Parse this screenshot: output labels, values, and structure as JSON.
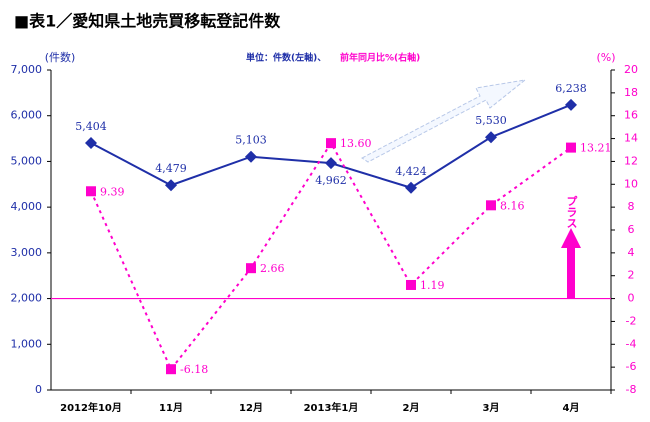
{
  "chart_data": {
    "type": "line",
    "title": "■表1／愛知県土地売買移転登記件数",
    "unit_note_left": "単位：件数(左軸)、",
    "unit_note_right": "前年同月比%(右軸)",
    "y_label": "(件数)",
    "y2_label": "(%)",
    "annotation": "プラス",
    "categories": [
      "2012年10月",
      "11月",
      "12月",
      "2013年1月",
      "2月",
      "3月",
      "4月"
    ],
    "series": [
      {
        "name": "件数",
        "color": "#1f2fa8",
        "values": [
          5404,
          4479,
          5103,
          4962,
          4424,
          5530,
          6238
        ],
        "value_labels": [
          "5,404",
          "4,479",
          "5,103",
          "4,962",
          "4,424",
          "5,530",
          "6,238"
        ]
      },
      {
        "name": "前年同月比",
        "color": "#ff00cc",
        "axis": "y2",
        "values": [
          9.39,
          -6.18,
          2.66,
          13.6,
          1.19,
          8.16,
          13.21
        ],
        "value_labels": [
          "9.39",
          "-6.18",
          "2.66",
          "13.60",
          "1.19",
          "8.16",
          "13.21"
        ]
      }
    ],
    "ylim": [
      0,
      7000
    ],
    "yticks": [
      0,
      {
        "value": 1000,
        "label": "1,000"
      },
      {
        "value": 2000,
        "label": "2,000"
      },
      {
        "value": 3000,
        "label": "3,000"
      },
      {
        "value": 4000,
        "label": "4,000"
      },
      {
        "value": 5000,
        "label": "5,000"
      },
      {
        "value": 6000,
        "label": "6,000"
      },
      {
        "value": 7000,
        "label": "7,000"
      }
    ],
    "y2lim": [
      -8,
      20
    ],
    "y2ticks": [
      -8,
      -6,
      -4,
      -2,
      0,
      2,
      4,
      6,
      8,
      10,
      12,
      14,
      16,
      18,
      20
    ],
    "y2_zero_line": 0
  }
}
